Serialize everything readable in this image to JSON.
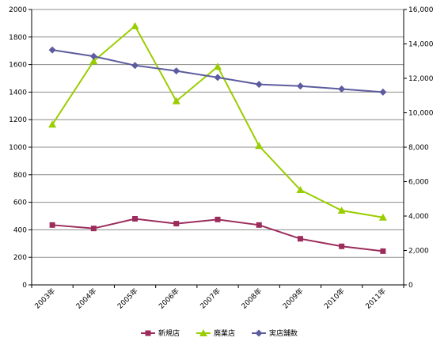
{
  "chart_data": {
    "type": "line",
    "title": "",
    "xlabel": "",
    "ylabel": "",
    "categories": [
      "2003年",
      "2004年",
      "2005年",
      "2006年",
      "2007年",
      "2008年",
      "2009年",
      "2010年",
      "2011年"
    ],
    "y_left": {
      "ylim": [
        0,
        2000
      ],
      "ticks": [
        0,
        200,
        400,
        600,
        800,
        1000,
        1200,
        1400,
        1600,
        1800,
        2000
      ]
    },
    "y_right": {
      "ylim": [
        0,
        16000
      ],
      "ticks": [
        "0",
        "2,000",
        "4,000",
        "6,000",
        "8,000",
        "10,000",
        "12,000",
        "14,000",
        "16,000"
      ]
    },
    "grid": true,
    "legend_position": "bottom",
    "series": [
      {
        "name": "新規店",
        "axis": "left",
        "color": "#9b2c5c",
        "marker": "square",
        "values": [
          435,
          410,
          480,
          445,
          475,
          435,
          335,
          280,
          245
        ]
      },
      {
        "name": "廃業店",
        "axis": "left",
        "color": "#9acd00",
        "marker": "triangle",
        "values": [
          1165,
          1625,
          1880,
          1335,
          1585,
          1010,
          690,
          540,
          490
        ]
      },
      {
        "name": "実店舗数",
        "axis": "right",
        "color": "#5c5c9e",
        "marker": "diamond",
        "values": [
          13650,
          13280,
          12750,
          12430,
          12050,
          11650,
          11550,
          11380,
          11200
        ]
      }
    ]
  }
}
